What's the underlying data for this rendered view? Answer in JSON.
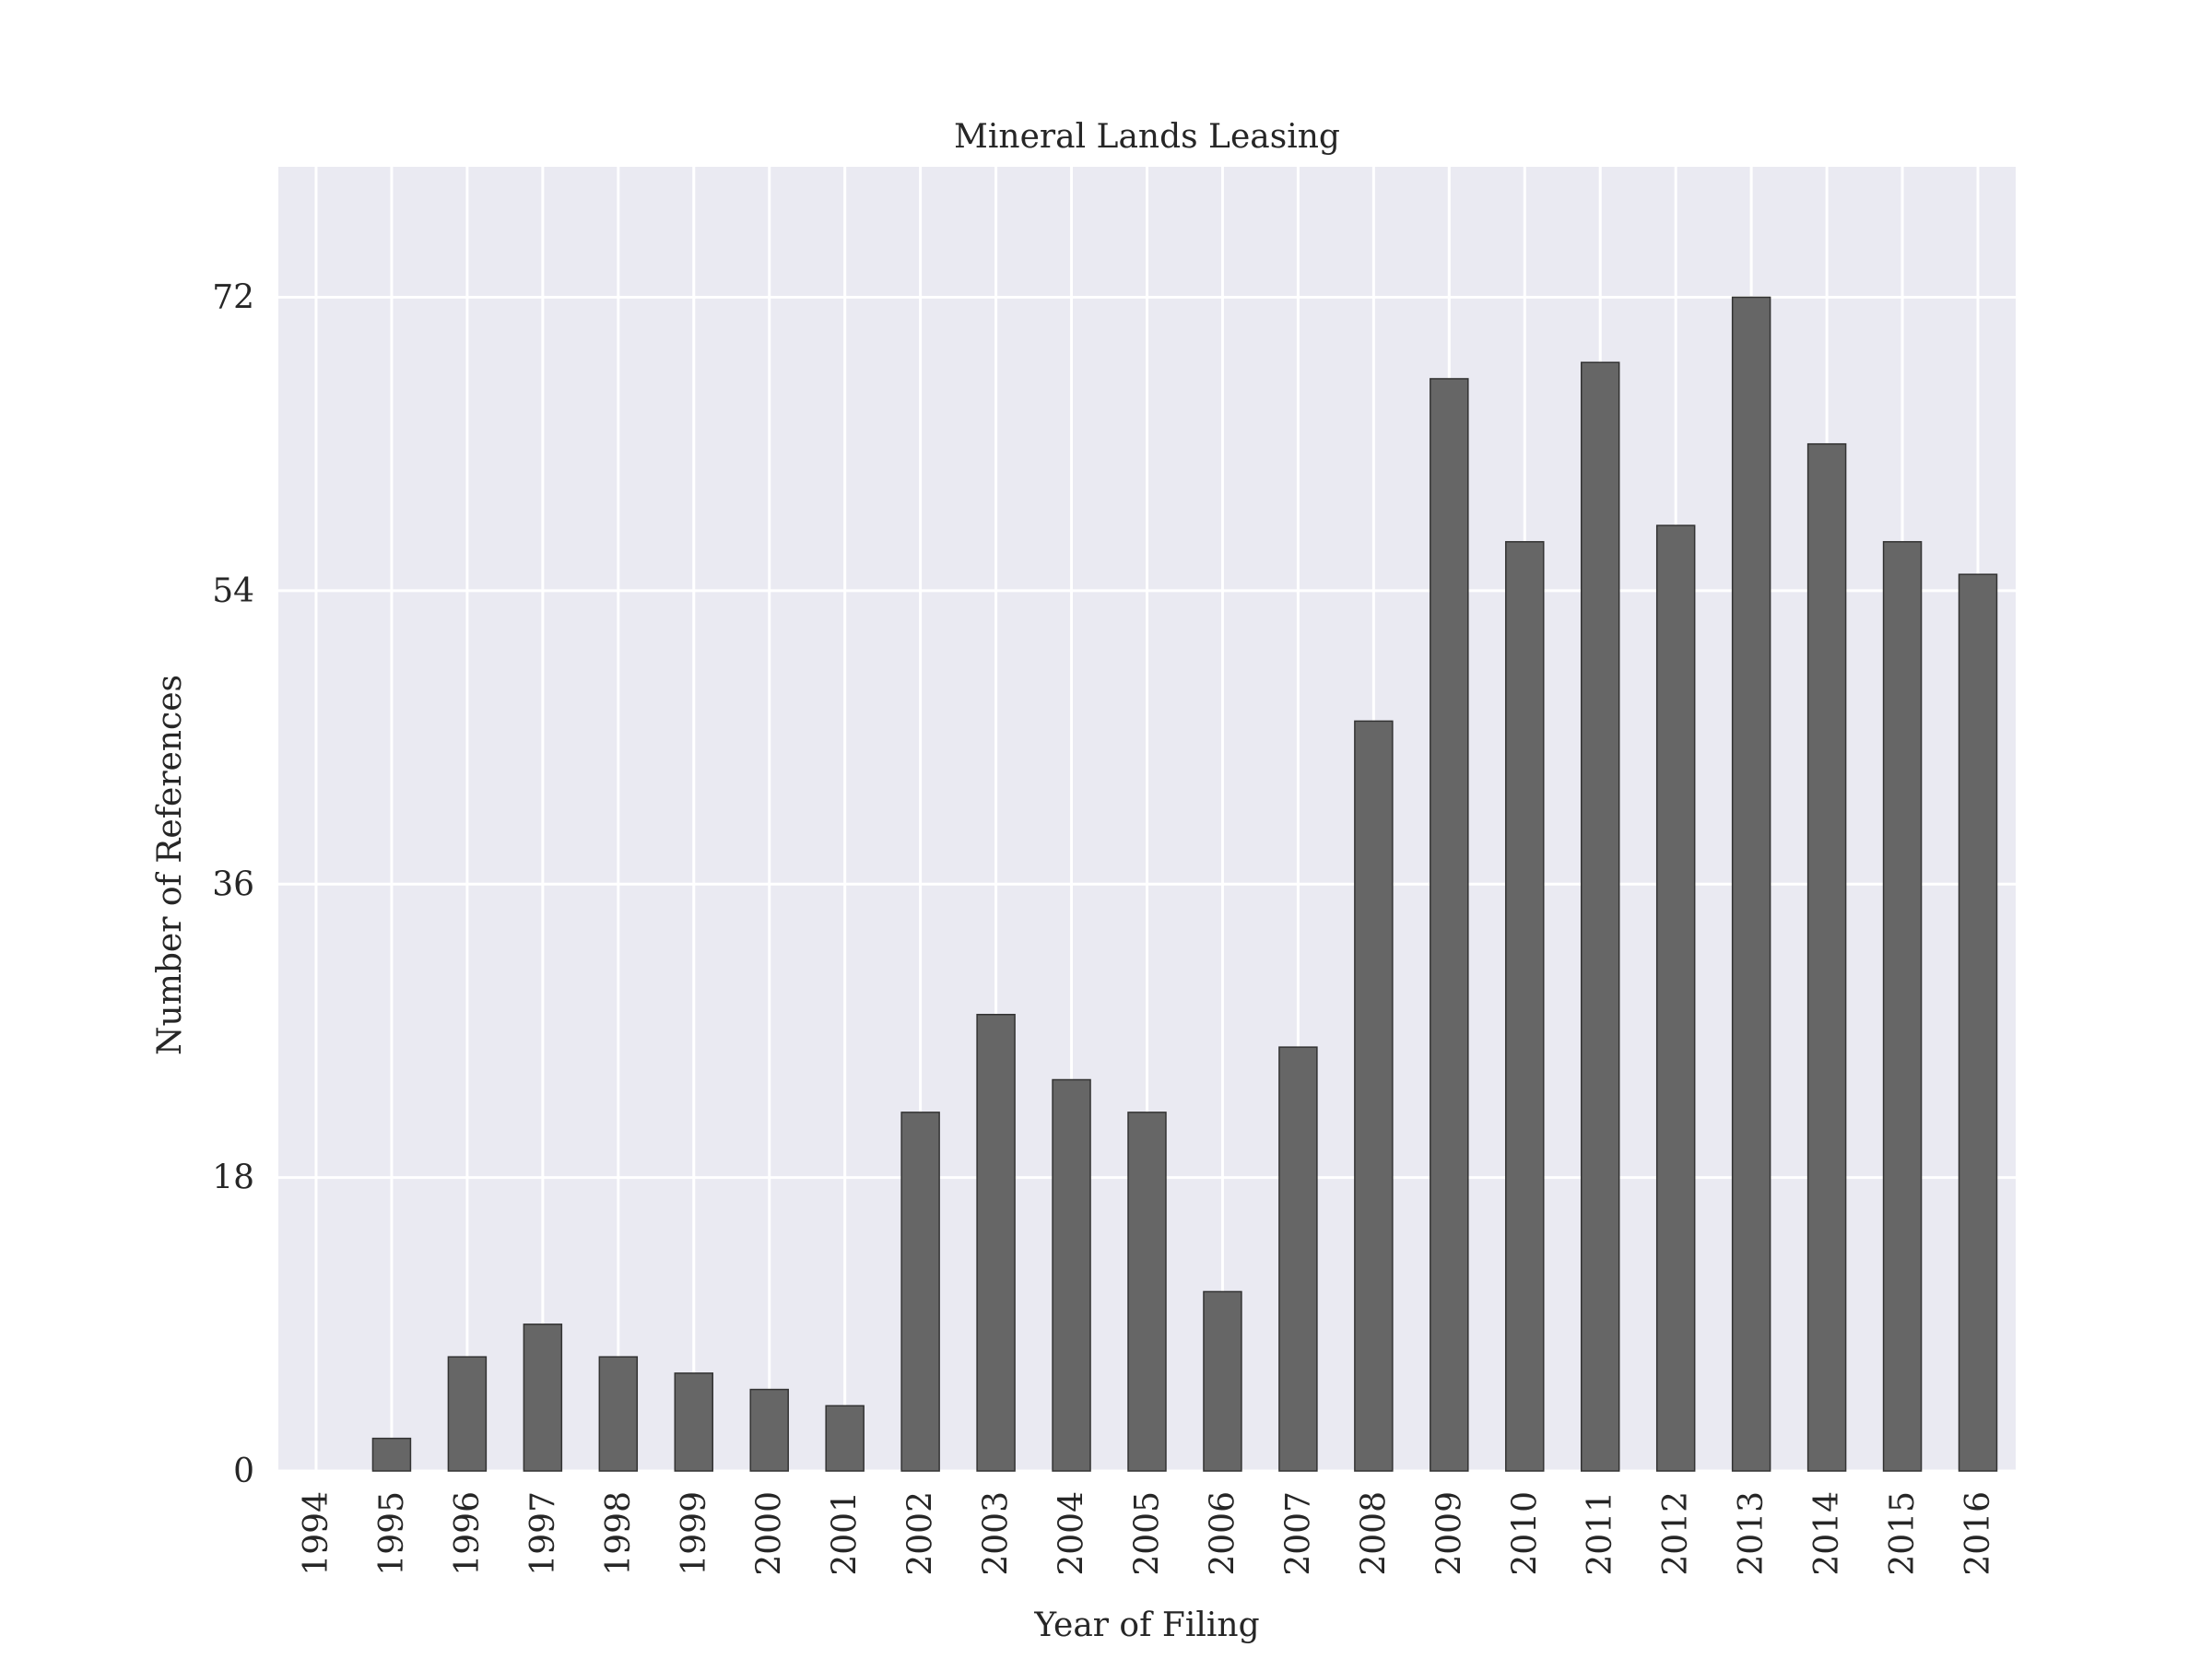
{
  "chart_data": {
    "type": "bar",
    "title": "Mineral Lands Leasing",
    "xlabel": "Year of Filing",
    "ylabel": "Number of References",
    "categories": [
      "1994",
      "1995",
      "1996",
      "1997",
      "1998",
      "1999",
      "2000",
      "2001",
      "2002",
      "2003",
      "2004",
      "2005",
      "2006",
      "2007",
      "2008",
      "2009",
      "2010",
      "2011",
      "2012",
      "2013",
      "2014",
      "2015",
      "2016"
    ],
    "values": [
      0,
      2,
      7,
      9,
      7,
      6,
      5,
      4,
      22,
      28,
      24,
      22,
      11,
      26,
      46,
      67,
      57,
      68,
      58,
      72,
      63,
      57,
      55
    ],
    "yticks": [
      0,
      18,
      36,
      54,
      72
    ],
    "ylim": [
      0,
      80
    ],
    "grid": true,
    "legend": "none",
    "colors": {
      "background": "#eaeaf2",
      "grid": "#ffffff",
      "bar": "#666666",
      "bar_edge": "#333333",
      "text": "#262626"
    }
  }
}
